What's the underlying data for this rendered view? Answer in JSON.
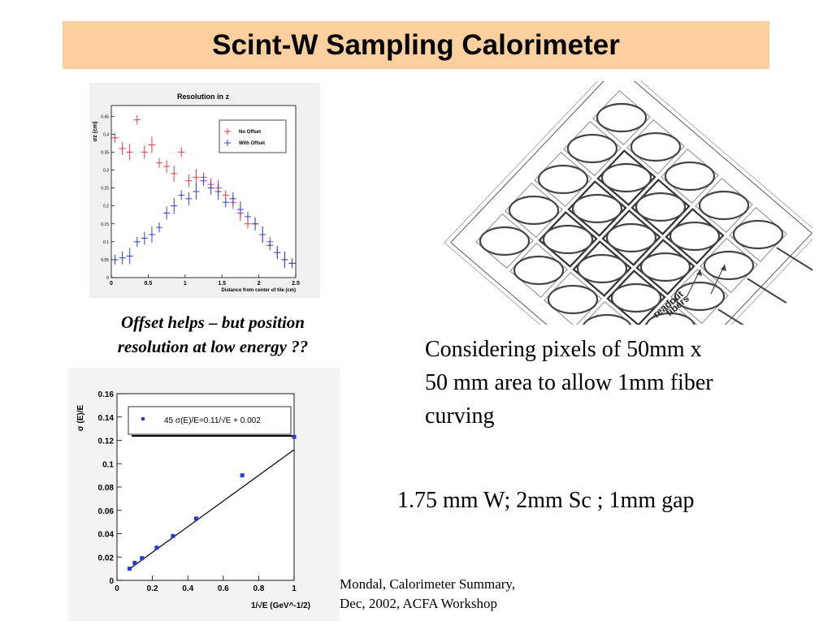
{
  "title": "Scint-W Sampling Calorimeter",
  "caption": {
    "line1": "Offset helps – but position",
    "line2": "resolution at low energy ??"
  },
  "body": {
    "line1": "Considering pixels of 50mm x",
    "line2": "50 mm area to allow 1mm fiber",
    "line3": "curving",
    "spec": "1.75 mm W; 2mm Sc ; 1mm gap"
  },
  "footer": {
    "line1": "Mondal, Calorimeter Summary,",
    "line2": "Dec, 2002, ACFA Workshop"
  },
  "figure_labels": {
    "readout": "readout",
    "fibers": "fibers"
  },
  "chart_data": [
    {
      "type": "scatter",
      "title": "Resolution in z",
      "xlabel": "Distance from center of tile (cm)",
      "ylabel": "σz (cm)",
      "xlim": [
        0,
        2.5
      ],
      "ylim": [
        0,
        0.48
      ],
      "xticks": [
        "0",
        "0.5",
        "1",
        "1.5",
        "2",
        "2.5"
      ],
      "yticks": [
        "0",
        "0.05",
        "0.1",
        "0.15",
        "0.2",
        "0.25",
        "0.3",
        "0.35",
        "0.4",
        "0.45"
      ],
      "legend_position": "top-right",
      "colors": {
        "no_offset": "#e8373c",
        "with_offset": "#2a3fd6"
      },
      "series": [
        {
          "name": "No Offset",
          "x": [
            0.05,
            0.15,
            0.25,
            0.35,
            0.45,
            0.55,
            0.65,
            0.75,
            0.85,
            0.95,
            1.05,
            1.15,
            1.25,
            1.35,
            1.45,
            1.55,
            1.65,
            1.75,
            1.85,
            1.95,
            2.05,
            2.15,
            2.25,
            2.35,
            2.45
          ],
          "y": [
            0.39,
            0.36,
            0.35,
            0.44,
            0.35,
            0.37,
            0.32,
            0.31,
            0.29,
            0.35,
            0.27,
            0.28,
            0.28,
            0.26,
            0.25,
            0.23,
            0.21,
            0.18,
            0.15,
            0.15,
            0.12,
            0.1,
            0.07,
            0.05,
            0.04
          ]
        },
        {
          "name": "With Offset",
          "x": [
            0.05,
            0.15,
            0.25,
            0.35,
            0.45,
            0.55,
            0.65,
            0.75,
            0.85,
            0.95,
            1.05,
            1.15,
            1.25,
            1.35,
            1.45,
            1.55,
            1.65,
            1.75,
            1.85,
            1.95,
            2.05,
            2.15,
            2.25,
            2.35,
            2.45
          ],
          "y": [
            0.05,
            0.055,
            0.06,
            0.1,
            0.11,
            0.12,
            0.14,
            0.18,
            0.2,
            0.23,
            0.22,
            0.24,
            0.27,
            0.25,
            0.24,
            0.21,
            0.22,
            0.19,
            0.17,
            0.15,
            0.12,
            0.09,
            0.07,
            0.05,
            0.04
          ]
        }
      ]
    },
    {
      "type": "scatter",
      "xlabel": "1/√E (GeV^-1/2)",
      "ylabel": "σ (E)/E",
      "xlim": [
        0,
        1
      ],
      "ylim": [
        0,
        0.16
      ],
      "xticks": [
        "0",
        "0.2",
        "0.4",
        "0.6",
        "0.8",
        "1"
      ],
      "yticks": [
        "0",
        "0.02",
        "0.04",
        "0.06",
        "0.08",
        "0.1",
        "0.12",
        "0.14",
        "0.16"
      ],
      "legend_position": "top",
      "legend_text": "45  σ(E)/E=0.11/√E + 0.002",
      "colors": {
        "points": "#1f3fd9",
        "fit": "#000000"
      },
      "fit_line": {
        "slope": 0.11,
        "intercept": 0.002,
        "x_range": [
          0.06,
          1.0
        ]
      },
      "series": [
        {
          "x": [
            0.071,
            0.1,
            0.141,
            0.224,
            0.316,
            0.447,
            0.707,
            1.0
          ],
          "y": [
            0.01,
            0.015,
            0.019,
            0.028,
            0.038,
            0.053,
            0.09,
            0.123
          ]
        }
      ]
    }
  ]
}
